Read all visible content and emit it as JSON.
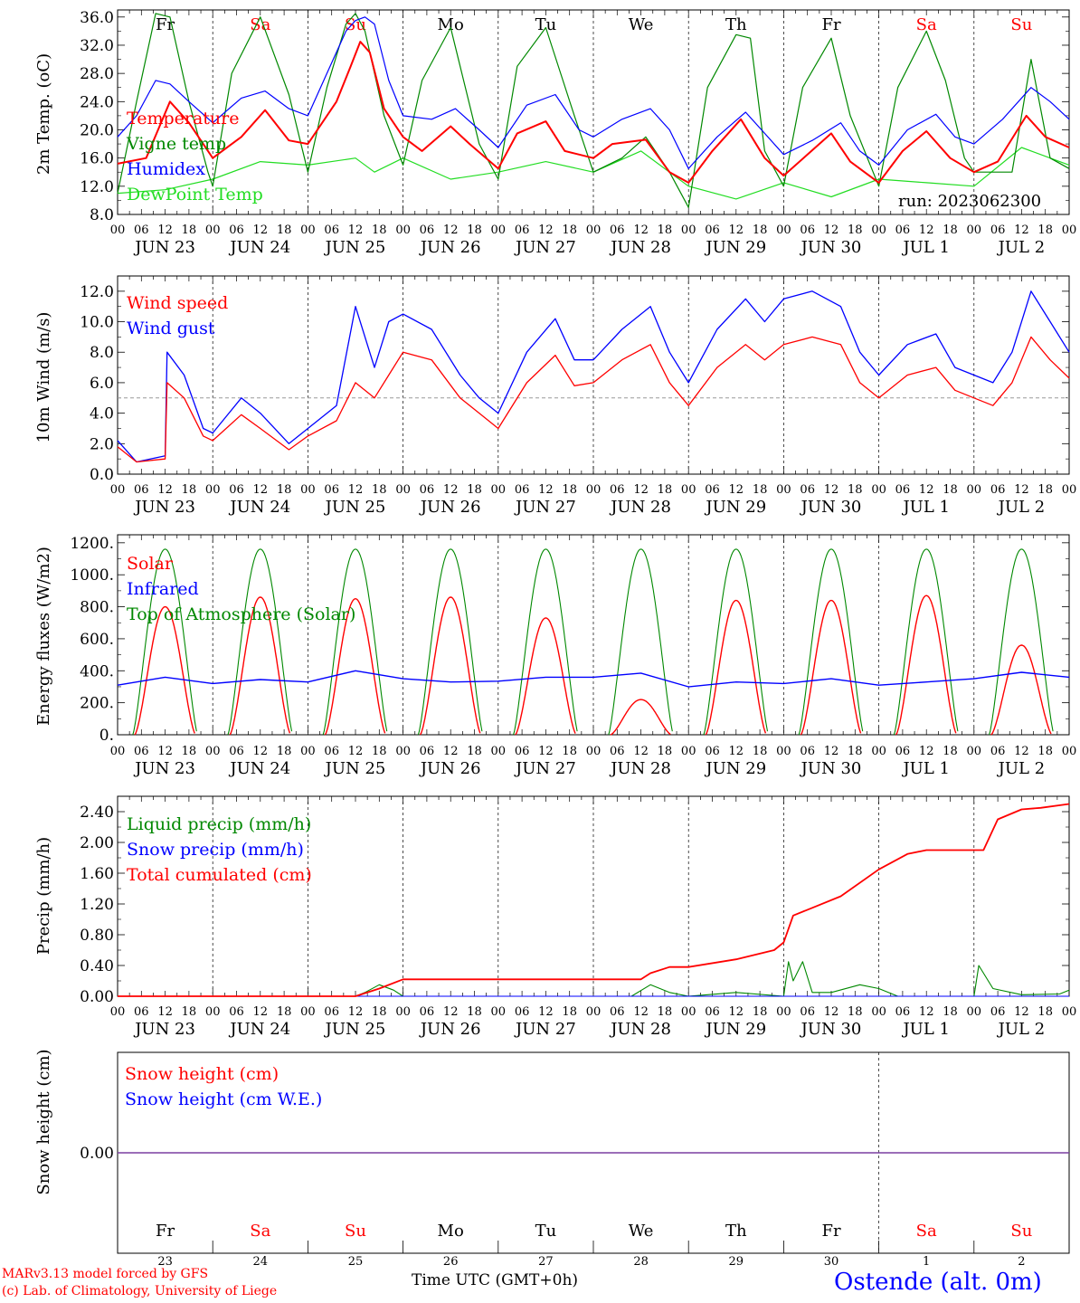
{
  "colors": {
    "temperature": "#ff0000",
    "vigne": "#008800",
    "humidex": "#0000ff",
    "dewpoint": "#22dd22",
    "wind_speed": "#ff0000",
    "wind_gust": "#0000ff",
    "solar": "#ff0000",
    "infrared": "#0000ff",
    "toa": "#008800",
    "liquid": "#008800",
    "snow_precip": "#0000ff",
    "cumulated": "#ff0000",
    "snow_height": "#ff0000",
    "snow_we": "#0000ff",
    "weekday": "#000000",
    "weekend": "#ff0000",
    "station": "#0000ff",
    "credit": "#ff0000"
  },
  "time_axis": {
    "hour_labels": [
      "00",
      "06",
      "12",
      "18"
    ],
    "final_hour_label": "00",
    "date_labels": [
      "JUN 23",
      "JUN 24",
      "JUN 25",
      "JUN 26",
      "JUN 27",
      "JUN 28",
      "JUN 29",
      "JUN 30",
      "JUL  1",
      "JUL  2"
    ],
    "weekdays": [
      "Fr",
      "Sa",
      "Su",
      "Mo",
      "Tu",
      "We",
      "Th",
      "Fr",
      "Sa",
      "Su"
    ],
    "weekend_flags": [
      false,
      true,
      true,
      false,
      false,
      false,
      false,
      false,
      true,
      true
    ],
    "day_numbers": [
      "23",
      "24",
      "25",
      "26",
      "27",
      "28",
      "29",
      "30",
      "1",
      "2"
    ]
  },
  "chart_data": [
    {
      "type": "line",
      "ylabel": "2m Temp. (oC)",
      "ylim": [
        8,
        37
      ],
      "yticks": [
        "8.0",
        "12.0",
        "16.0",
        "20.0",
        "24.0",
        "28.0",
        "32.0",
        "36.0"
      ],
      "xlim_days": [
        0,
        10
      ],
      "annotation": "run: 2023062300",
      "series": [
        {
          "name": "Temperature",
          "color_key": "temperature",
          "x": [
            0,
            0.3,
            0.55,
            0.75,
            1,
            1.3,
            1.55,
            1.8,
            2,
            2.3,
            2.45,
            2.55,
            2.65,
            2.8,
            3,
            3.2,
            3.5,
            3.7,
            4,
            4.2,
            4.5,
            4.7,
            5,
            5.2,
            5.55,
            5.8,
            6,
            6.25,
            6.55,
            6.8,
            7,
            7.25,
            7.5,
            7.7,
            8,
            8.25,
            8.5,
            8.75,
            9,
            9.25,
            9.55,
            9.75,
            10
          ],
          "y": [
            15.2,
            16,
            24,
            21,
            16,
            19,
            22.8,
            18.5,
            18,
            24,
            29,
            32.5,
            31,
            23,
            19,
            17,
            20.5,
            18,
            14.5,
            19.5,
            21.2,
            17,
            16,
            18,
            18.6,
            14,
            12.5,
            17,
            21.5,
            16,
            13.5,
            16.5,
            19.5,
            15.5,
            12.5,
            17,
            19.8,
            16,
            14,
            15.5,
            22,
            19,
            17.5
          ]
        },
        {
          "name": "Vigne temp",
          "color_key": "vigne",
          "x": [
            0,
            0.2,
            0.4,
            0.55,
            0.75,
            0.95,
            1,
            1.2,
            1.5,
            1.8,
            2,
            2.2,
            2.4,
            2.5,
            2.6,
            2.8,
            3,
            3.2,
            3.5,
            3.8,
            4,
            4.2,
            4.5,
            4.8,
            5,
            5.3,
            5.55,
            5.8,
            6,
            6.2,
            6.5,
            6.65,
            6.8,
            7,
            7.2,
            7.5,
            7.7,
            8,
            8.2,
            8.5,
            8.7,
            8.9,
            9,
            9.2,
            9.4,
            9.6,
            9.8,
            10
          ],
          "y": [
            11,
            24,
            36.5,
            36,
            24,
            14,
            12,
            28,
            36,
            25,
            14,
            26,
            35,
            36.5,
            34,
            22,
            15,
            27,
            34.5,
            18,
            13,
            29,
            34.5,
            22,
            14,
            16,
            19,
            14,
            9,
            26,
            33.5,
            33,
            17,
            12,
            26,
            33,
            22,
            12,
            26,
            34,
            27,
            16,
            14,
            14,
            14,
            30,
            16,
            14.5
          ]
        },
        {
          "name": "Humidex",
          "color_key": "humidex",
          "x": [
            0,
            0.2,
            0.4,
            0.55,
            0.75,
            1,
            1.3,
            1.55,
            1.8,
            2,
            2.2,
            2.4,
            2.5,
            2.6,
            2.7,
            2.85,
            3,
            3.3,
            3.55,
            3.8,
            4,
            4.3,
            4.6,
            4.85,
            5,
            5.3,
            5.6,
            5.8,
            6,
            6.3,
            6.6,
            6.8,
            7,
            7.3,
            7.6,
            7.8,
            8,
            8.3,
            8.6,
            8.8,
            9,
            9.3,
            9.6,
            9.8,
            10
          ],
          "y": [
            19,
            22,
            27,
            26.5,
            24,
            21,
            24.5,
            25.5,
            23,
            22,
            28,
            34,
            35.5,
            36,
            35,
            27,
            22,
            21.5,
            23,
            20,
            17.5,
            23.5,
            25,
            20,
            19,
            21.5,
            23,
            20,
            14.5,
            19,
            22.5,
            19.5,
            16.5,
            18.5,
            21,
            17,
            15,
            20,
            22.2,
            19,
            18,
            21.5,
            26,
            24,
            21.5
          ]
        },
        {
          "name": "DewPoint Temp",
          "color_key": "dewpoint",
          "x": [
            0,
            0.5,
            1,
            1.5,
            2,
            2.5,
            2.7,
            3,
            3.5,
            4,
            4.5,
            5,
            5.5,
            6,
            6.5,
            7,
            7.5,
            8,
            8.5,
            9,
            9.5,
            10
          ],
          "y": [
            11,
            11.5,
            13,
            15.5,
            15,
            16,
            14,
            16,
            13,
            14,
            15.5,
            14,
            17,
            12,
            10.2,
            12.5,
            10.5,
            13,
            12.5,
            12,
            17.5,
            15
          ]
        }
      ]
    },
    {
      "type": "line",
      "ylabel": "10m Wind (m/s)",
      "ylim": [
        0,
        13
      ],
      "yticks": [
        "0.0",
        "2.0",
        "4.0",
        "6.0",
        "8.0",
        "10.0",
        "12.0"
      ],
      "reference_line": 5,
      "series": [
        {
          "name": "Wind speed",
          "color_key": "wind_speed",
          "x": [
            0,
            0.2,
            0.5,
            0.52,
            0.7,
            0.9,
            1,
            1.3,
            1.5,
            1.8,
            2,
            2.3,
            2.5,
            2.7,
            2.85,
            3,
            3.3,
            3.6,
            3.8,
            4,
            4.3,
            4.6,
            4.8,
            5,
            5.3,
            5.6,
            5.8,
            6,
            6.3,
            6.6,
            6.8,
            7,
            7.3,
            7.6,
            7.8,
            8,
            8.3,
            8.6,
            8.8,
            9,
            9.2,
            9.4,
            9.6,
            9.8,
            10
          ],
          "y": [
            1.8,
            0.8,
            1.0,
            6.0,
            5.0,
            2.5,
            2.2,
            3.9,
            3.0,
            1.6,
            2.5,
            3.5,
            6.0,
            5.0,
            6.5,
            8.0,
            7.5,
            5.0,
            4.0,
            3.0,
            6.0,
            7.8,
            5.8,
            6.0,
            7.5,
            8.5,
            6.0,
            4.5,
            7.0,
            8.5,
            7.5,
            8.5,
            9.0,
            8.5,
            6.0,
            5.0,
            6.5,
            7.0,
            5.5,
            5.0,
            4.5,
            6.0,
            9.0,
            7.5,
            6.3
          ]
        },
        {
          "name": "Wind gust",
          "color_key": "wind_gust",
          "x": [
            0,
            0.2,
            0.5,
            0.52,
            0.7,
            0.9,
            1,
            1.3,
            1.5,
            1.8,
            2,
            2.3,
            2.5,
            2.7,
            2.85,
            3,
            3.3,
            3.6,
            3.8,
            4,
            4.3,
            4.6,
            4.8,
            5,
            5.3,
            5.6,
            5.8,
            6,
            6.3,
            6.6,
            6.8,
            7,
            7.3,
            7.6,
            7.8,
            8,
            8.3,
            8.6,
            8.8,
            9,
            9.2,
            9.4,
            9.6,
            9.8,
            10
          ],
          "y": [
            2.2,
            0.8,
            1.2,
            8.0,
            6.5,
            3.0,
            2.7,
            5.0,
            4.0,
            2.0,
            3.0,
            4.5,
            11.0,
            7.0,
            10.0,
            10.5,
            9.5,
            6.5,
            5.0,
            4.0,
            8.0,
            10.2,
            7.5,
            7.5,
            9.5,
            11.0,
            8.0,
            6.0,
            9.5,
            11.5,
            10.0,
            11.5,
            12.0,
            11.0,
            8.0,
            6.5,
            8.5,
            9.2,
            7.0,
            6.5,
            6.0,
            8.0,
            12.0,
            10.0,
            8.0
          ]
        }
      ]
    },
    {
      "type": "line",
      "ylabel": "Energy fluxes (W/m2)",
      "ylim": [
        0,
        1250
      ],
      "yticks": [
        "0.",
        "200.",
        "400.",
        "600.",
        "800.",
        "1000.",
        "1200."
      ],
      "solar_peaks": [
        800,
        860,
        850,
        860,
        730,
        220,
        840,
        840,
        870,
        560
      ],
      "toa_peak": 1160,
      "series": [
        {
          "name": "Solar",
          "color_key": "solar"
        },
        {
          "name": "Infrared",
          "color_key": "infrared",
          "x": [
            0,
            0.5,
            1,
            1.5,
            2,
            2.5,
            3,
            3.5,
            4,
            4.5,
            5,
            5.5,
            6,
            6.5,
            7,
            7.5,
            8,
            8.5,
            9,
            9.5,
            10
          ],
          "y": [
            310,
            360,
            320,
            345,
            330,
            400,
            350,
            330,
            335,
            360,
            360,
            385,
            300,
            330,
            320,
            350,
            310,
            330,
            350,
            390,
            360
          ]
        },
        {
          "name": "Top of Atmosphere (Solar)",
          "color_key": "toa"
        }
      ]
    },
    {
      "type": "line",
      "ylabel": "Precip (mm/h)",
      "ylim": [
        0,
        2.6
      ],
      "yticks": [
        "0.00",
        "0.40",
        "0.80",
        "1.20",
        "1.60",
        "2.00",
        "2.40"
      ],
      "series": [
        {
          "name": "Liquid precip (mm/h)",
          "color_key": "liquid",
          "x": [
            0,
            2.5,
            2.6,
            2.75,
            2.9,
            3.0,
            5.4,
            5.6,
            5.8,
            6.0,
            6.5,
            7.0,
            7.05,
            7.1,
            7.2,
            7.3,
            7.5,
            7.8,
            8.0,
            8.2,
            9.0,
            9.05,
            9.2,
            9.5,
            9.9,
            10
          ],
          "y": [
            0,
            0,
            0.05,
            0.15,
            0.08,
            0,
            0,
            0.15,
            0.05,
            0,
            0.05,
            0,
            0.45,
            0.2,
            0.45,
            0.05,
            0.05,
            0.15,
            0.1,
            0,
            0,
            0.4,
            0.1,
            0.02,
            0.03,
            0.08
          ]
        },
        {
          "name": "Snow precip (mm/h)",
          "color_key": "snow_precip",
          "x": [
            0,
            10
          ],
          "y": [
            0,
            0
          ]
        },
        {
          "name": "Total cumulated (cm)",
          "color_key": "cumulated",
          "x": [
            0,
            2.5,
            2.75,
            3.0,
            5.5,
            5.6,
            5.8,
            6.0,
            6.5,
            6.9,
            7.0,
            7.1,
            7.3,
            7.6,
            8.0,
            8.3,
            8.5,
            9.1,
            9.25,
            9.5,
            9.7,
            10
          ],
          "y": [
            0,
            0,
            0.1,
            0.22,
            0.22,
            0.3,
            0.38,
            0.38,
            0.48,
            0.6,
            0.7,
            1.05,
            1.15,
            1.3,
            1.65,
            1.85,
            1.9,
            1.9,
            2.3,
            2.43,
            2.45,
            2.5
          ]
        }
      ]
    },
    {
      "type": "line",
      "ylabel": "Snow height (cm)",
      "yticks": [
        "0.00"
      ],
      "series": [
        {
          "name": "Snow height (cm)",
          "color_key": "snow_height",
          "x": [
            0,
            10
          ],
          "y": [
            0,
            0
          ]
        },
        {
          "name": "Snow height (cm W.E.)",
          "color_key": "snow_we",
          "x": [
            0,
            10
          ],
          "y": [
            0,
            0
          ]
        }
      ]
    }
  ],
  "footer": {
    "time_label": "Time UTC (GMT+0h)",
    "credit_line1": "MARv3.13 model forced by GFS",
    "credit_line2": "(c) Lab. of Climatology, University of Liege",
    "station": "Ostende (alt. 0m)"
  }
}
